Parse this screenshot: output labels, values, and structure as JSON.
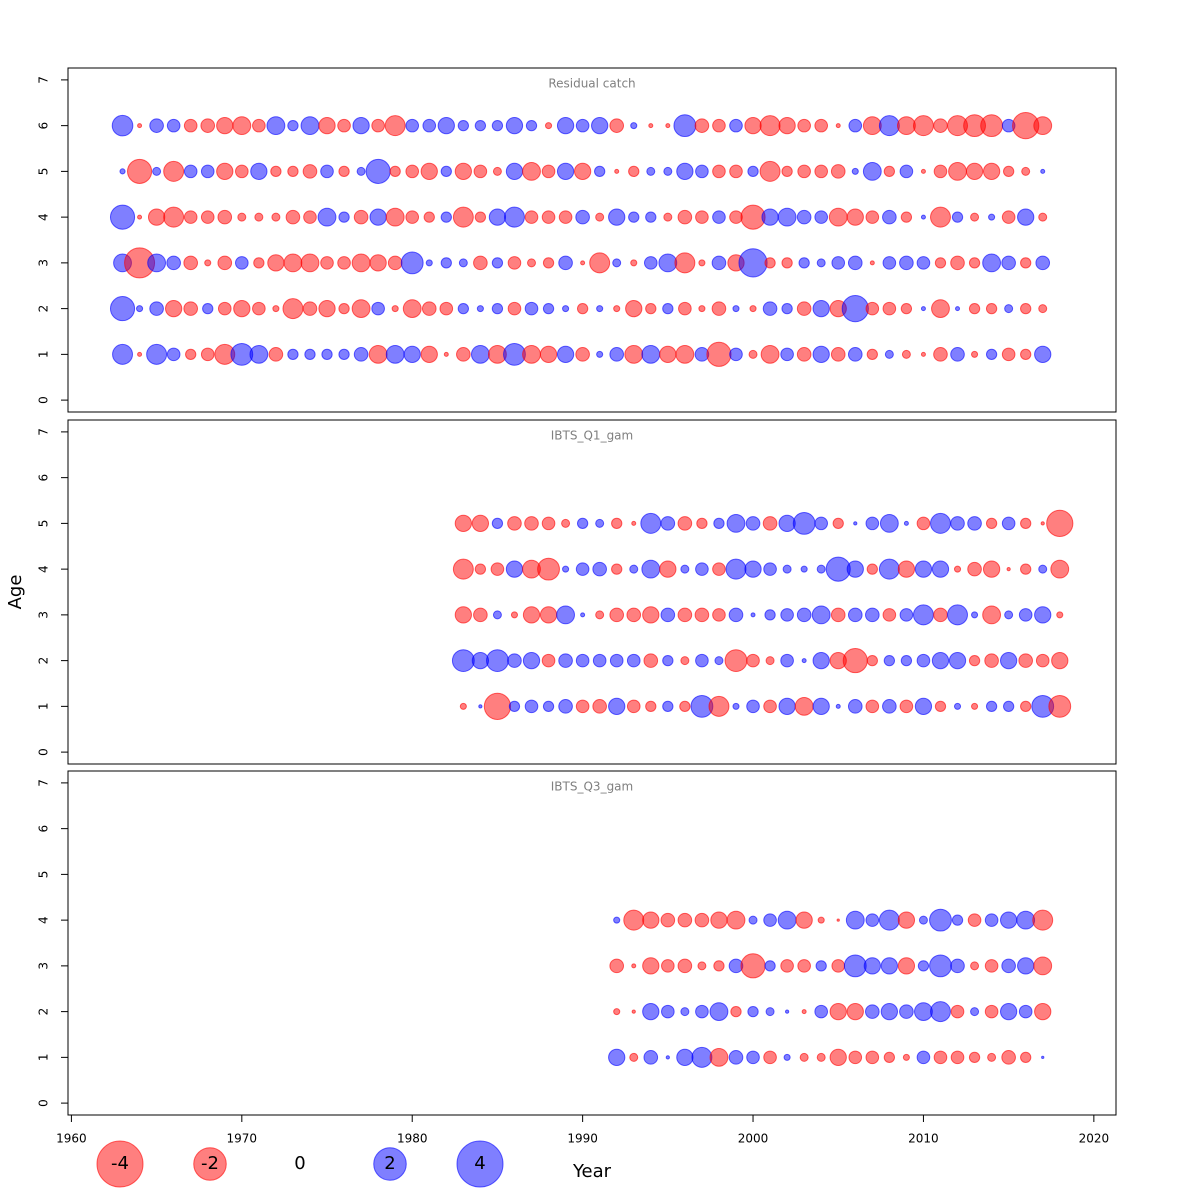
{
  "chart_data": [
    {
      "type": "bubble",
      "title": "Residual catch",
      "negative_color": "#ff0000",
      "positive_color": "#0000ff",
      "xlim": [
        1959.8,
        2021.3
      ],
      "ylim": [
        -0.26,
        7.26
      ],
      "yticks": [
        0,
        1,
        2,
        3,
        4,
        5,
        6,
        7
      ],
      "x": [
        1963,
        1964,
        1965,
        1966,
        1967,
        1968,
        1969,
        1970,
        1971,
        1972,
        1973,
        1974,
        1975,
        1976,
        1977,
        1978,
        1979,
        1980,
        1981,
        1982,
        1983,
        1984,
        1985,
        1986,
        1987,
        1988,
        1989,
        1990,
        1991,
        1992,
        1993,
        1994,
        1995,
        1996,
        1997,
        1998,
        1999,
        2000,
        2001,
        2002,
        2003,
        2004,
        2005,
        2006,
        2007,
        2008,
        2009,
        2010,
        2011,
        2012,
        2013,
        2014,
        2015,
        2016,
        2017
      ],
      "y": [
        1,
        2,
        3,
        4,
        5,
        6
      ],
      "values": [
        [
          0.75,
          -0.03,
          0.75,
          0.3,
          -0.2,
          -0.3,
          -0.75,
          0.9,
          0.6,
          -0.35,
          0.2,
          0.2,
          0.2,
          0.2,
          0.35,
          -0.6,
          0.6,
          0.5,
          -0.5,
          -0.03,
          -0.35,
          0.6,
          -0.6,
          0.9,
          -0.6,
          -0.5,
          0.5,
          -0.35,
          0.07,
          0.35,
          -0.6,
          0.6,
          -0.5,
          -0.6,
          0.35,
          -1.1,
          0.3,
          -0.12,
          -0.6,
          0.3,
          -0.35,
          0.5,
          -0.35,
          0.35,
          -0.2,
          0.12,
          -0.12,
          -0.03,
          -0.35,
          0.35,
          -0.07,
          0.2,
          -0.3,
          -0.2,
          0.5
        ],
        [
          1.1,
          0.07,
          0.35,
          -0.5,
          -0.35,
          0.2,
          -0.3,
          -0.5,
          -0.3,
          -0.07,
          -0.75,
          -0.35,
          -0.5,
          -0.2,
          -0.6,
          0.3,
          -0.07,
          -0.6,
          -0.35,
          -0.3,
          0.2,
          0.07,
          0.2,
          -0.3,
          0.3,
          0.2,
          0.07,
          -0.2,
          0.07,
          -0.07,
          -0.5,
          -0.2,
          0.2,
          -0.3,
          -0.07,
          -0.35,
          0.07,
          -0.07,
          0.35,
          0.2,
          -0.35,
          0.5,
          -0.5,
          1.3,
          -0.3,
          -0.3,
          -0.2,
          0.03,
          -0.6,
          0.03,
          -0.2,
          -0.2,
          0.12,
          -0.2,
          -0.12
        ],
        [
          0.6,
          -1.7,
          0.6,
          0.35,
          -0.35,
          -0.07,
          -0.35,
          0.3,
          -0.2,
          -0.5,
          -0.6,
          -0.6,
          -0.3,
          -0.3,
          -0.6,
          -0.5,
          -0.35,
          0.9,
          0.07,
          0.2,
          0.12,
          -0.35,
          0.2,
          -0.3,
          -0.12,
          -0.2,
          0.35,
          -0.03,
          -0.75,
          0.12,
          -0.07,
          0.3,
          0.6,
          -0.75,
          -0.07,
          0.35,
          -0.5,
          1.5,
          -0.2,
          -0.2,
          0.2,
          0.12,
          0.3,
          0.35,
          -0.03,
          0.3,
          0.35,
          0.3,
          -0.2,
          -0.35,
          -0.2,
          0.6,
          0.35,
          -0.2,
          0.35
        ],
        [
          1.1,
          -0.03,
          -0.5,
          -0.75,
          -0.3,
          -0.3,
          -0.35,
          -0.12,
          -0.12,
          -0.12,
          -0.35,
          -0.3,
          0.6,
          0.2,
          -0.35,
          0.5,
          -0.6,
          -0.3,
          -0.2,
          0.2,
          -0.75,
          -0.2,
          0.5,
          0.75,
          -0.3,
          -0.3,
          -0.3,
          0.35,
          -0.12,
          0.5,
          0.2,
          0.2,
          -0.12,
          -0.35,
          -0.3,
          0.3,
          -0.3,
          -1.1,
          0.5,
          0.6,
          0.35,
          0.3,
          -0.6,
          -0.5,
          -0.3,
          0.35,
          -0.2,
          0.03,
          -0.75,
          0.2,
          -0.12,
          0.07,
          -0.3,
          0.5,
          -0.12
        ],
        [
          0.05,
          -1.1,
          0.12,
          -0.75,
          0.3,
          0.3,
          -0.5,
          -0.3,
          0.5,
          -0.2,
          -0.2,
          -0.35,
          0.3,
          -0.2,
          0.12,
          1.1,
          -0.2,
          -0.3,
          -0.5,
          0.2,
          -0.5,
          -0.3,
          -0.12,
          0.5,
          -0.6,
          -0.3,
          0.5,
          -0.5,
          0.2,
          -0.03,
          -0.2,
          0.12,
          0.12,
          0.5,
          0.3,
          -0.3,
          -0.3,
          0.2,
          -0.75,
          -0.2,
          -0.3,
          -0.3,
          -0.35,
          0.07,
          0.6,
          -0.2,
          0.3,
          -0.03,
          -0.3,
          -0.6,
          -0.5,
          -0.5,
          -0.2,
          -0.12,
          0.03
        ],
        [
          0.8,
          -0.03,
          0.35,
          0.3,
          -0.3,
          -0.35,
          -0.5,
          -0.6,
          -0.3,
          0.6,
          0.2,
          0.6,
          -0.5,
          -0.3,
          0.5,
          -0.3,
          -0.75,
          0.3,
          0.3,
          0.5,
          0.2,
          0.2,
          0.2,
          0.5,
          0.2,
          -0.07,
          0.5,
          0.3,
          0.5,
          -0.35,
          0.07,
          -0.03,
          -0.03,
          0.9,
          -0.35,
          -0.3,
          0.3,
          -0.5,
          -0.75,
          -0.5,
          -0.3,
          -0.3,
          -0.03,
          0.3,
          -0.6,
          0.75,
          -0.6,
          -0.75,
          -0.35,
          -0.75,
          -0.9,
          -0.9,
          0.3,
          -1.3,
          -0.6
        ]
      ]
    },
    {
      "type": "bubble",
      "title": "IBTS_Q1_gam",
      "ylabel": "Age",
      "negative_color": "#ff0000",
      "positive_color": "#0000ff",
      "xlim": [
        1959.8,
        2021.3
      ],
      "ylim": [
        -0.26,
        7.26
      ],
      "yticks": [
        0,
        1,
        2,
        3,
        4,
        5,
        6,
        7
      ],
      "x": [
        1983,
        1984,
        1985,
        1986,
        1987,
        1988,
        1989,
        1990,
        1991,
        1992,
        1993,
        1994,
        1995,
        1996,
        1997,
        1998,
        1999,
        2000,
        2001,
        2002,
        2003,
        2004,
        2005,
        2006,
        2007,
        2008,
        2009,
        2010,
        2011,
        2012,
        2013,
        2014,
        2015,
        2016,
        2017,
        2018
      ],
      "y": [
        1,
        2,
        3,
        4,
        5
      ],
      "values": [
        [
          -0.07,
          0.02,
          -1.3,
          0.2,
          0.3,
          0.2,
          0.35,
          -0.3,
          -0.35,
          0.5,
          -0.3,
          -0.2,
          0.2,
          -0.2,
          0.9,
          -0.75,
          0.07,
          0.3,
          -0.3,
          0.5,
          -0.6,
          0.5,
          0.03,
          0.35,
          -0.3,
          0.35,
          -0.3,
          0.5,
          -0.2,
          0.07,
          -0.07,
          0.2,
          0.2,
          -0.2,
          0.9,
          -0.9
        ],
        [
          0.9,
          0.5,
          0.9,
          0.35,
          0.5,
          -0.3,
          0.35,
          0.3,
          0.3,
          0.3,
          0.3,
          -0.35,
          0.2,
          -0.12,
          0.3,
          0.12,
          -0.9,
          -0.3,
          -0.12,
          0.3,
          0.03,
          0.5,
          -0.5,
          -1.1,
          -0.2,
          0.2,
          0.2,
          0.3,
          0.5,
          0.5,
          -0.2,
          -0.35,
          0.5,
          -0.35,
          -0.3,
          -0.5
        ],
        [
          -0.5,
          -0.35,
          0.12,
          -0.07,
          -0.5,
          -0.5,
          0.6,
          0.03,
          -0.12,
          -0.35,
          -0.35,
          -0.5,
          0.35,
          -0.35,
          -0.35,
          -0.3,
          0.35,
          0.03,
          0.2,
          0.3,
          0.35,
          0.6,
          -0.35,
          0.35,
          0.35,
          -0.3,
          0.3,
          0.75,
          -0.35,
          0.75,
          0.07,
          -0.6,
          0.12,
          0.3,
          0.5,
          -0.07
        ],
        [
          -0.75,
          -0.2,
          -0.3,
          0.5,
          -0.6,
          -0.9,
          0.07,
          0.3,
          0.35,
          -0.2,
          0.12,
          0.6,
          -0.5,
          0.12,
          0.3,
          -0.3,
          0.75,
          0.5,
          0.3,
          0.12,
          0.07,
          0.12,
          1.1,
          0.5,
          -0.2,
          0.75,
          -0.5,
          0.5,
          0.5,
          -0.07,
          -0.35,
          -0.5,
          -0.02,
          -0.2,
          0.12,
          -0.6
        ],
        [
          -0.5,
          -0.5,
          0.2,
          -0.35,
          -0.35,
          -0.3,
          -0.12,
          0.2,
          0.12,
          -0.2,
          -0.03,
          0.75,
          0.35,
          -0.35,
          -0.2,
          0.2,
          0.6,
          0.35,
          -0.35,
          0.5,
          0.9,
          0.3,
          -0.2,
          0.02,
          0.3,
          0.6,
          0.03,
          -0.3,
          0.75,
          0.35,
          0.35,
          -0.2,
          0.3,
          -0.2,
          -0.02,
          -1.3
        ]
      ]
    },
    {
      "type": "bubble",
      "title": "IBTS_Q3_gam",
      "xlabel": "Year",
      "negative_color": "#ff0000",
      "positive_color": "#0000ff",
      "xlim": [
        1959.8,
        2021.3
      ],
      "xticks": [
        1960,
        1970,
        1980,
        1990,
        2000,
        2010,
        2020
      ],
      "ylim": [
        -0.26,
        7.26
      ],
      "yticks": [
        0,
        1,
        2,
        3,
        4,
        5,
        6,
        7
      ],
      "x": [
        1992,
        1993,
        1994,
        1995,
        1996,
        1997,
        1998,
        1999,
        2000,
        2001,
        2002,
        2003,
        2004,
        2005,
        2006,
        2007,
        2008,
        2009,
        2010,
        2011,
        2012,
        2013,
        2014,
        2015,
        2016,
        2017
      ],
      "y": [
        1,
        2,
        3,
        4
      ],
      "values": [
        [
          0.5,
          -0.12,
          0.35,
          0.02,
          0.5,
          0.75,
          -0.6,
          0.35,
          0.3,
          -0.3,
          0.07,
          -0.12,
          -0.12,
          -0.5,
          -0.3,
          -0.3,
          -0.2,
          -0.07,
          0.3,
          -0.3,
          -0.3,
          -0.2,
          -0.12,
          -0.35,
          -0.2,
          0.01
        ],
        [
          -0.07,
          -0.02,
          0.5,
          0.3,
          0.12,
          0.3,
          0.6,
          -0.2,
          0.2,
          0.12,
          0.02,
          -0.03,
          0.3,
          -0.5,
          -0.5,
          0.35,
          0.5,
          0.35,
          0.6,
          0.75,
          -0.3,
          0.12,
          -0.3,
          0.5,
          0.3,
          -0.5
        ],
        [
          -0.35,
          -0.03,
          -0.5,
          -0.3,
          -0.35,
          -0.12,
          -0.2,
          0.35,
          -1.1,
          0.2,
          -0.3,
          -0.3,
          0.2,
          -0.3,
          0.9,
          0.5,
          0.5,
          -0.5,
          0.2,
          0.9,
          0.35,
          -0.12,
          -0.3,
          0.35,
          0.5,
          -0.6
        ],
        [
          0.07,
          -0.75,
          -0.5,
          -0.35,
          -0.35,
          -0.35,
          -0.5,
          -0.6,
          0.12,
          0.3,
          0.6,
          -0.5,
          -0.07,
          -0.01,
          0.6,
          0.3,
          0.75,
          -0.5,
          0.12,
          0.9,
          0.2,
          -0.3,
          0.3,
          0.5,
          0.6,
          -0.75
        ]
      ],
      "size_legend": [
        -4,
        -2,
        0,
        2,
        4
      ]
    }
  ]
}
